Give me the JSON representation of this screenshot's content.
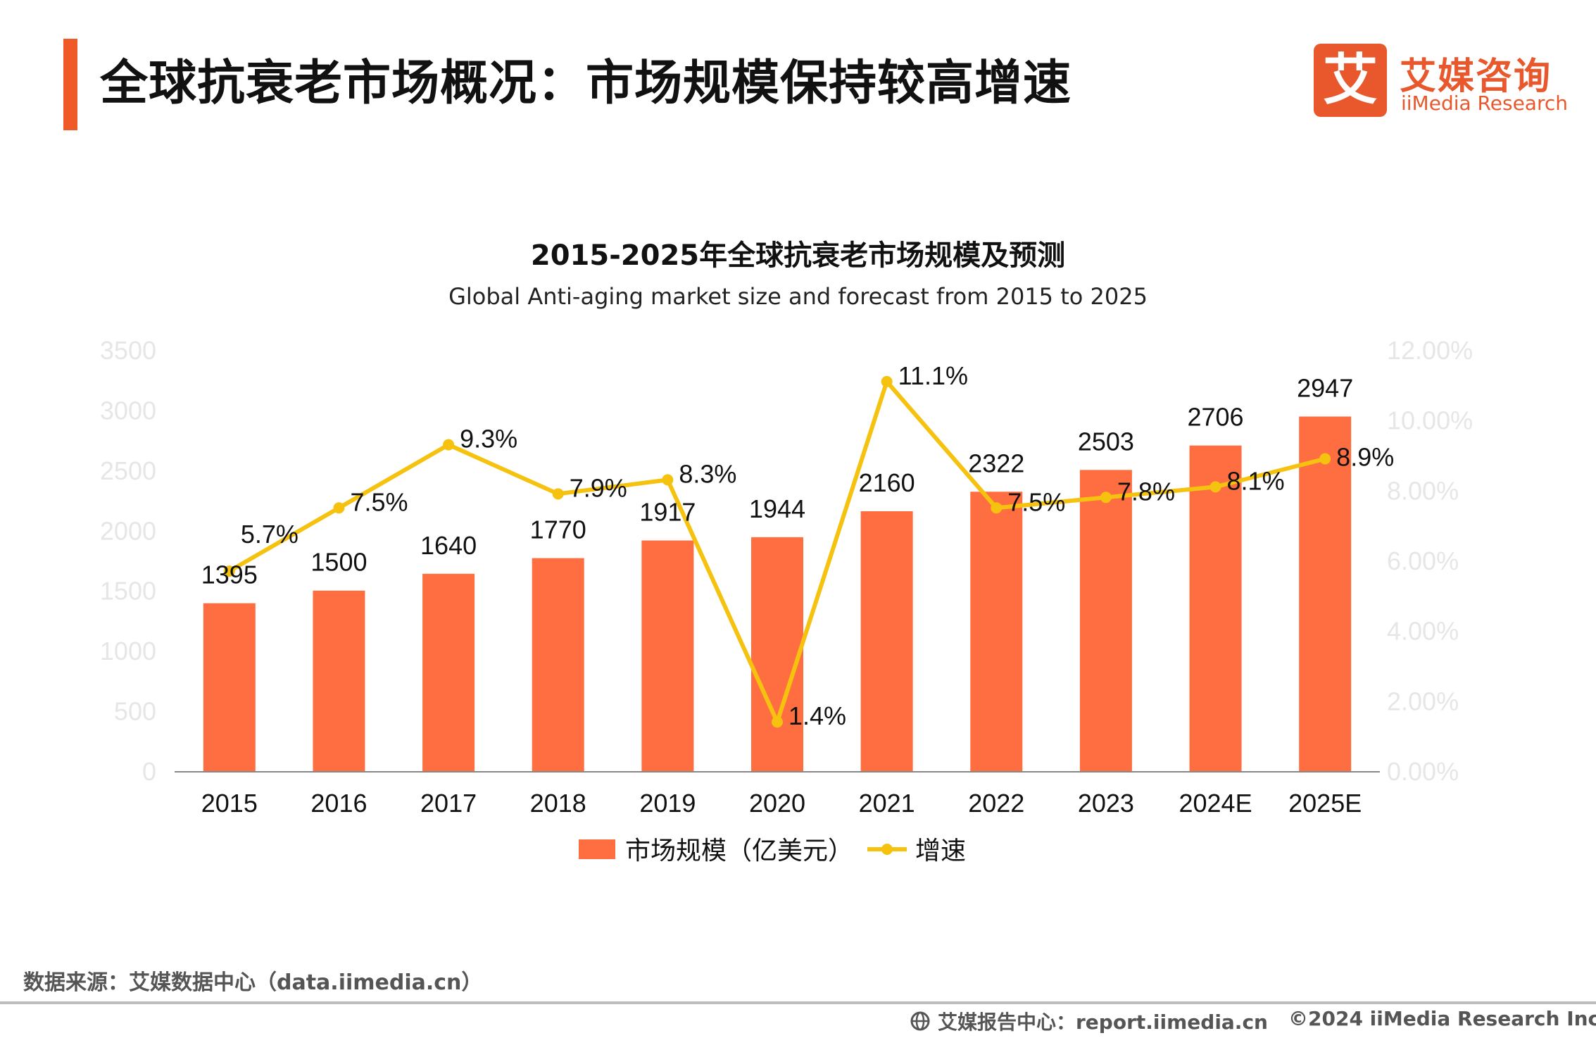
{
  "header": {
    "title": "全球抗衰老市场概况：市场规模保持较高增速",
    "logo_mark": "艾",
    "logo_cn": "艾媒咨询",
    "logo_en": "iiMedia Research"
  },
  "colors": {
    "accent": "#f05a28",
    "bar": "#ff6e40",
    "line": "#f5c20f",
    "axis_label": "#e6e6e6",
    "text": "#222222"
  },
  "chart_data": {
    "type": "bar",
    "title": "2015-2025年全球抗衰老市场规模及预测",
    "subtitle": "Global Anti-aging market size and forecast from 2015 to 2025",
    "categories": [
      "2015",
      "2016",
      "2017",
      "2018",
      "2019",
      "2020",
      "2021",
      "2022",
      "2023",
      "2024E",
      "2025E"
    ],
    "series": [
      {
        "name": "市场规模（亿美元）",
        "type": "bar",
        "axis": "left",
        "values": [
          1395,
          1500,
          1640,
          1770,
          1917,
          1944,
          2160,
          2322,
          2503,
          2706,
          2947
        ],
        "labels": [
          "1395",
          "1500",
          "1640",
          "1770",
          "1917",
          "1944",
          "2160",
          "2322",
          "2503",
          "2706",
          "2947"
        ]
      },
      {
        "name": "增速",
        "type": "line",
        "axis": "right",
        "values": [
          5.7,
          7.5,
          9.3,
          7.9,
          8.3,
          1.4,
          11.1,
          7.5,
          7.8,
          8.1,
          8.9
        ],
        "labels": [
          "5.7%",
          "7.5%",
          "9.3%",
          "7.9%",
          "8.3%",
          "1.4%",
          "11.1%",
          "7.5%",
          "7.8%",
          "8.1%",
          "8.9%"
        ]
      }
    ],
    "y_left": {
      "min": 0,
      "max": 3500,
      "ticks": [
        "0",
        "500",
        "1000",
        "1500",
        "2000",
        "2500",
        "3000",
        "3500"
      ]
    },
    "y_right": {
      "min": 0,
      "max": 12,
      "ticks": [
        "0.00%",
        "2.00%",
        "4.00%",
        "6.00%",
        "8.00%",
        "10.00%",
        "12.00%"
      ]
    },
    "legend": [
      "市场规模（亿美元）",
      "增速"
    ],
    "legend_position": "bottom",
    "grid": false
  },
  "footer": {
    "source": "数据来源：艾媒数据中心（data.iimedia.cn）",
    "report": "艾媒报告中心：report.iimedia.cn",
    "copyright": "©2024  iiMedia Research  Inc"
  }
}
